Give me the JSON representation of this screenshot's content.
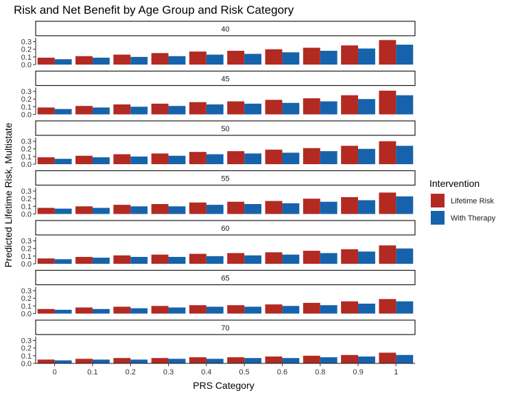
{
  "chart_data": {
    "type": "bar",
    "title": "Risk and Net Benefit by Age Group and Risk Category",
    "xlabel": "PRS Category",
    "ylabel": "Predicted Lifetime Risk, Multistate",
    "categories": [
      "0",
      "0.1",
      "0.2",
      "0.3",
      "0.4",
      "0.5",
      "0.6",
      "0.8",
      "0.9",
      "1"
    ],
    "y_ticks": [
      "0.0",
      "0.1",
      "0.2",
      "0.3"
    ],
    "ylim": [
      0,
      0.35
    ],
    "legend": {
      "title": "Intervention",
      "position": "right",
      "items": [
        {
          "name": "Lifetime Risk",
          "color": "#b22a22"
        },
        {
          "name": "With Therapy",
          "color": "#1663ac"
        }
      ]
    },
    "facets": [
      {
        "label": "40",
        "series": [
          {
            "name": "Lifetime Risk",
            "values": [
              0.09,
              0.11,
              0.13,
              0.15,
              0.17,
              0.18,
              0.2,
              0.22,
              0.25,
              0.32
            ]
          },
          {
            "name": "With Therapy",
            "values": [
              0.07,
              0.09,
              0.1,
              0.11,
              0.13,
              0.14,
              0.16,
              0.18,
              0.21,
              0.26
            ]
          }
        ]
      },
      {
        "label": "45",
        "series": [
          {
            "name": "Lifetime Risk",
            "values": [
              0.09,
              0.11,
              0.13,
              0.14,
              0.16,
              0.17,
              0.19,
              0.21,
              0.25,
              0.31
            ]
          },
          {
            "name": "With Therapy",
            "values": [
              0.07,
              0.09,
              0.1,
              0.11,
              0.13,
              0.14,
              0.15,
              0.17,
              0.2,
              0.25
            ]
          }
        ]
      },
      {
        "label": "50",
        "series": [
          {
            "name": "Lifetime Risk",
            "values": [
              0.09,
              0.11,
              0.13,
              0.14,
              0.16,
              0.17,
              0.19,
              0.21,
              0.24,
              0.3
            ]
          },
          {
            "name": "With Therapy",
            "values": [
              0.07,
              0.09,
              0.1,
              0.11,
              0.13,
              0.14,
              0.15,
              0.17,
              0.2,
              0.24
            ]
          }
        ]
      },
      {
        "label": "55",
        "series": [
          {
            "name": "Lifetime Risk",
            "values": [
              0.08,
              0.1,
              0.12,
              0.13,
              0.15,
              0.16,
              0.17,
              0.2,
              0.22,
              0.28
            ]
          },
          {
            "name": "With Therapy",
            "values": [
              0.07,
              0.08,
              0.1,
              0.1,
              0.12,
              0.13,
              0.14,
              0.16,
              0.18,
              0.23
            ]
          }
        ]
      },
      {
        "label": "60",
        "series": [
          {
            "name": "Lifetime Risk",
            "values": [
              0.07,
              0.09,
              0.11,
              0.12,
              0.13,
              0.14,
              0.15,
              0.17,
              0.19,
              0.24
            ]
          },
          {
            "name": "With Therapy",
            "values": [
              0.06,
              0.08,
              0.09,
              0.09,
              0.1,
              0.11,
              0.12,
              0.14,
              0.16,
              0.2
            ]
          }
        ]
      },
      {
        "label": "65",
        "series": [
          {
            "name": "Lifetime Risk",
            "values": [
              0.06,
              0.08,
              0.09,
              0.1,
              0.11,
              0.11,
              0.12,
              0.14,
              0.16,
              0.19
            ]
          },
          {
            "name": "With Therapy",
            "values": [
              0.05,
              0.06,
              0.07,
              0.08,
              0.09,
              0.09,
              0.1,
              0.11,
              0.13,
              0.16
            ]
          }
        ]
      },
      {
        "label": "70",
        "series": [
          {
            "name": "Lifetime Risk",
            "values": [
              0.05,
              0.06,
              0.07,
              0.07,
              0.08,
              0.08,
              0.09,
              0.1,
              0.11,
              0.14
            ]
          },
          {
            "name": "With Therapy",
            "values": [
              0.04,
              0.05,
              0.05,
              0.06,
              0.06,
              0.07,
              0.07,
              0.08,
              0.09,
              0.11
            ]
          }
        ]
      }
    ]
  }
}
